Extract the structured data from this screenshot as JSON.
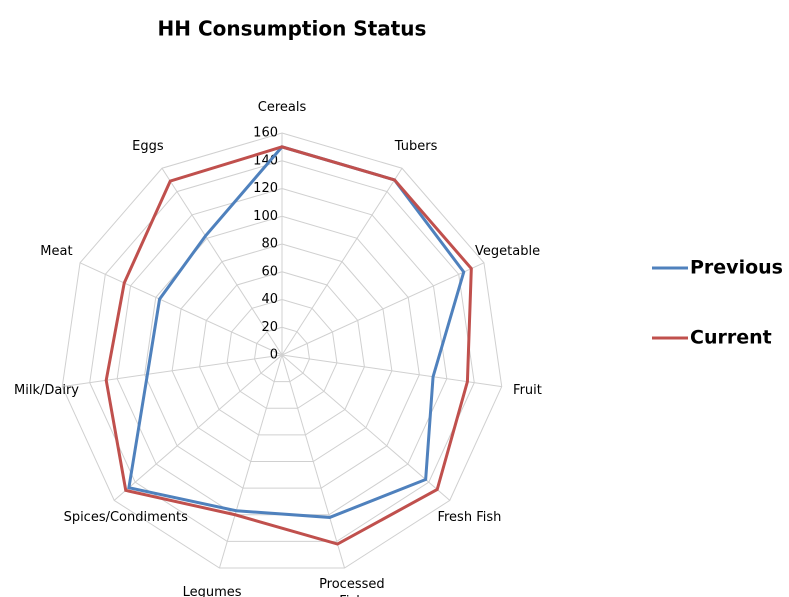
{
  "chart_data": {
    "type": "radar",
    "title": "HH Consumption Status",
    "categories": [
      "Cereals",
      "Tubers",
      "Vegetable",
      "Fruit",
      "Fresh Fish",
      "Processed Fish",
      "Legumes",
      "Spices/Condiments",
      "Milk/Dairy",
      "Meat",
      "Eggs"
    ],
    "series": [
      {
        "name": "Previous",
        "color": "#4f81bd",
        "values": [
          150,
          150,
          144,
          110,
          137,
          122,
          117,
          146,
          98,
          97,
          102
        ]
      },
      {
        "name": "Current",
        "color": "#c0504d",
        "values": [
          150,
          150,
          150,
          135,
          148,
          142,
          120,
          149,
          128,
          125,
          149
        ]
      }
    ],
    "ylim": [
      0,
      160
    ],
    "yticks": [
      0,
      20,
      40,
      60,
      80,
      100,
      120,
      140,
      160
    ],
    "grid": true,
    "legend": "right"
  }
}
